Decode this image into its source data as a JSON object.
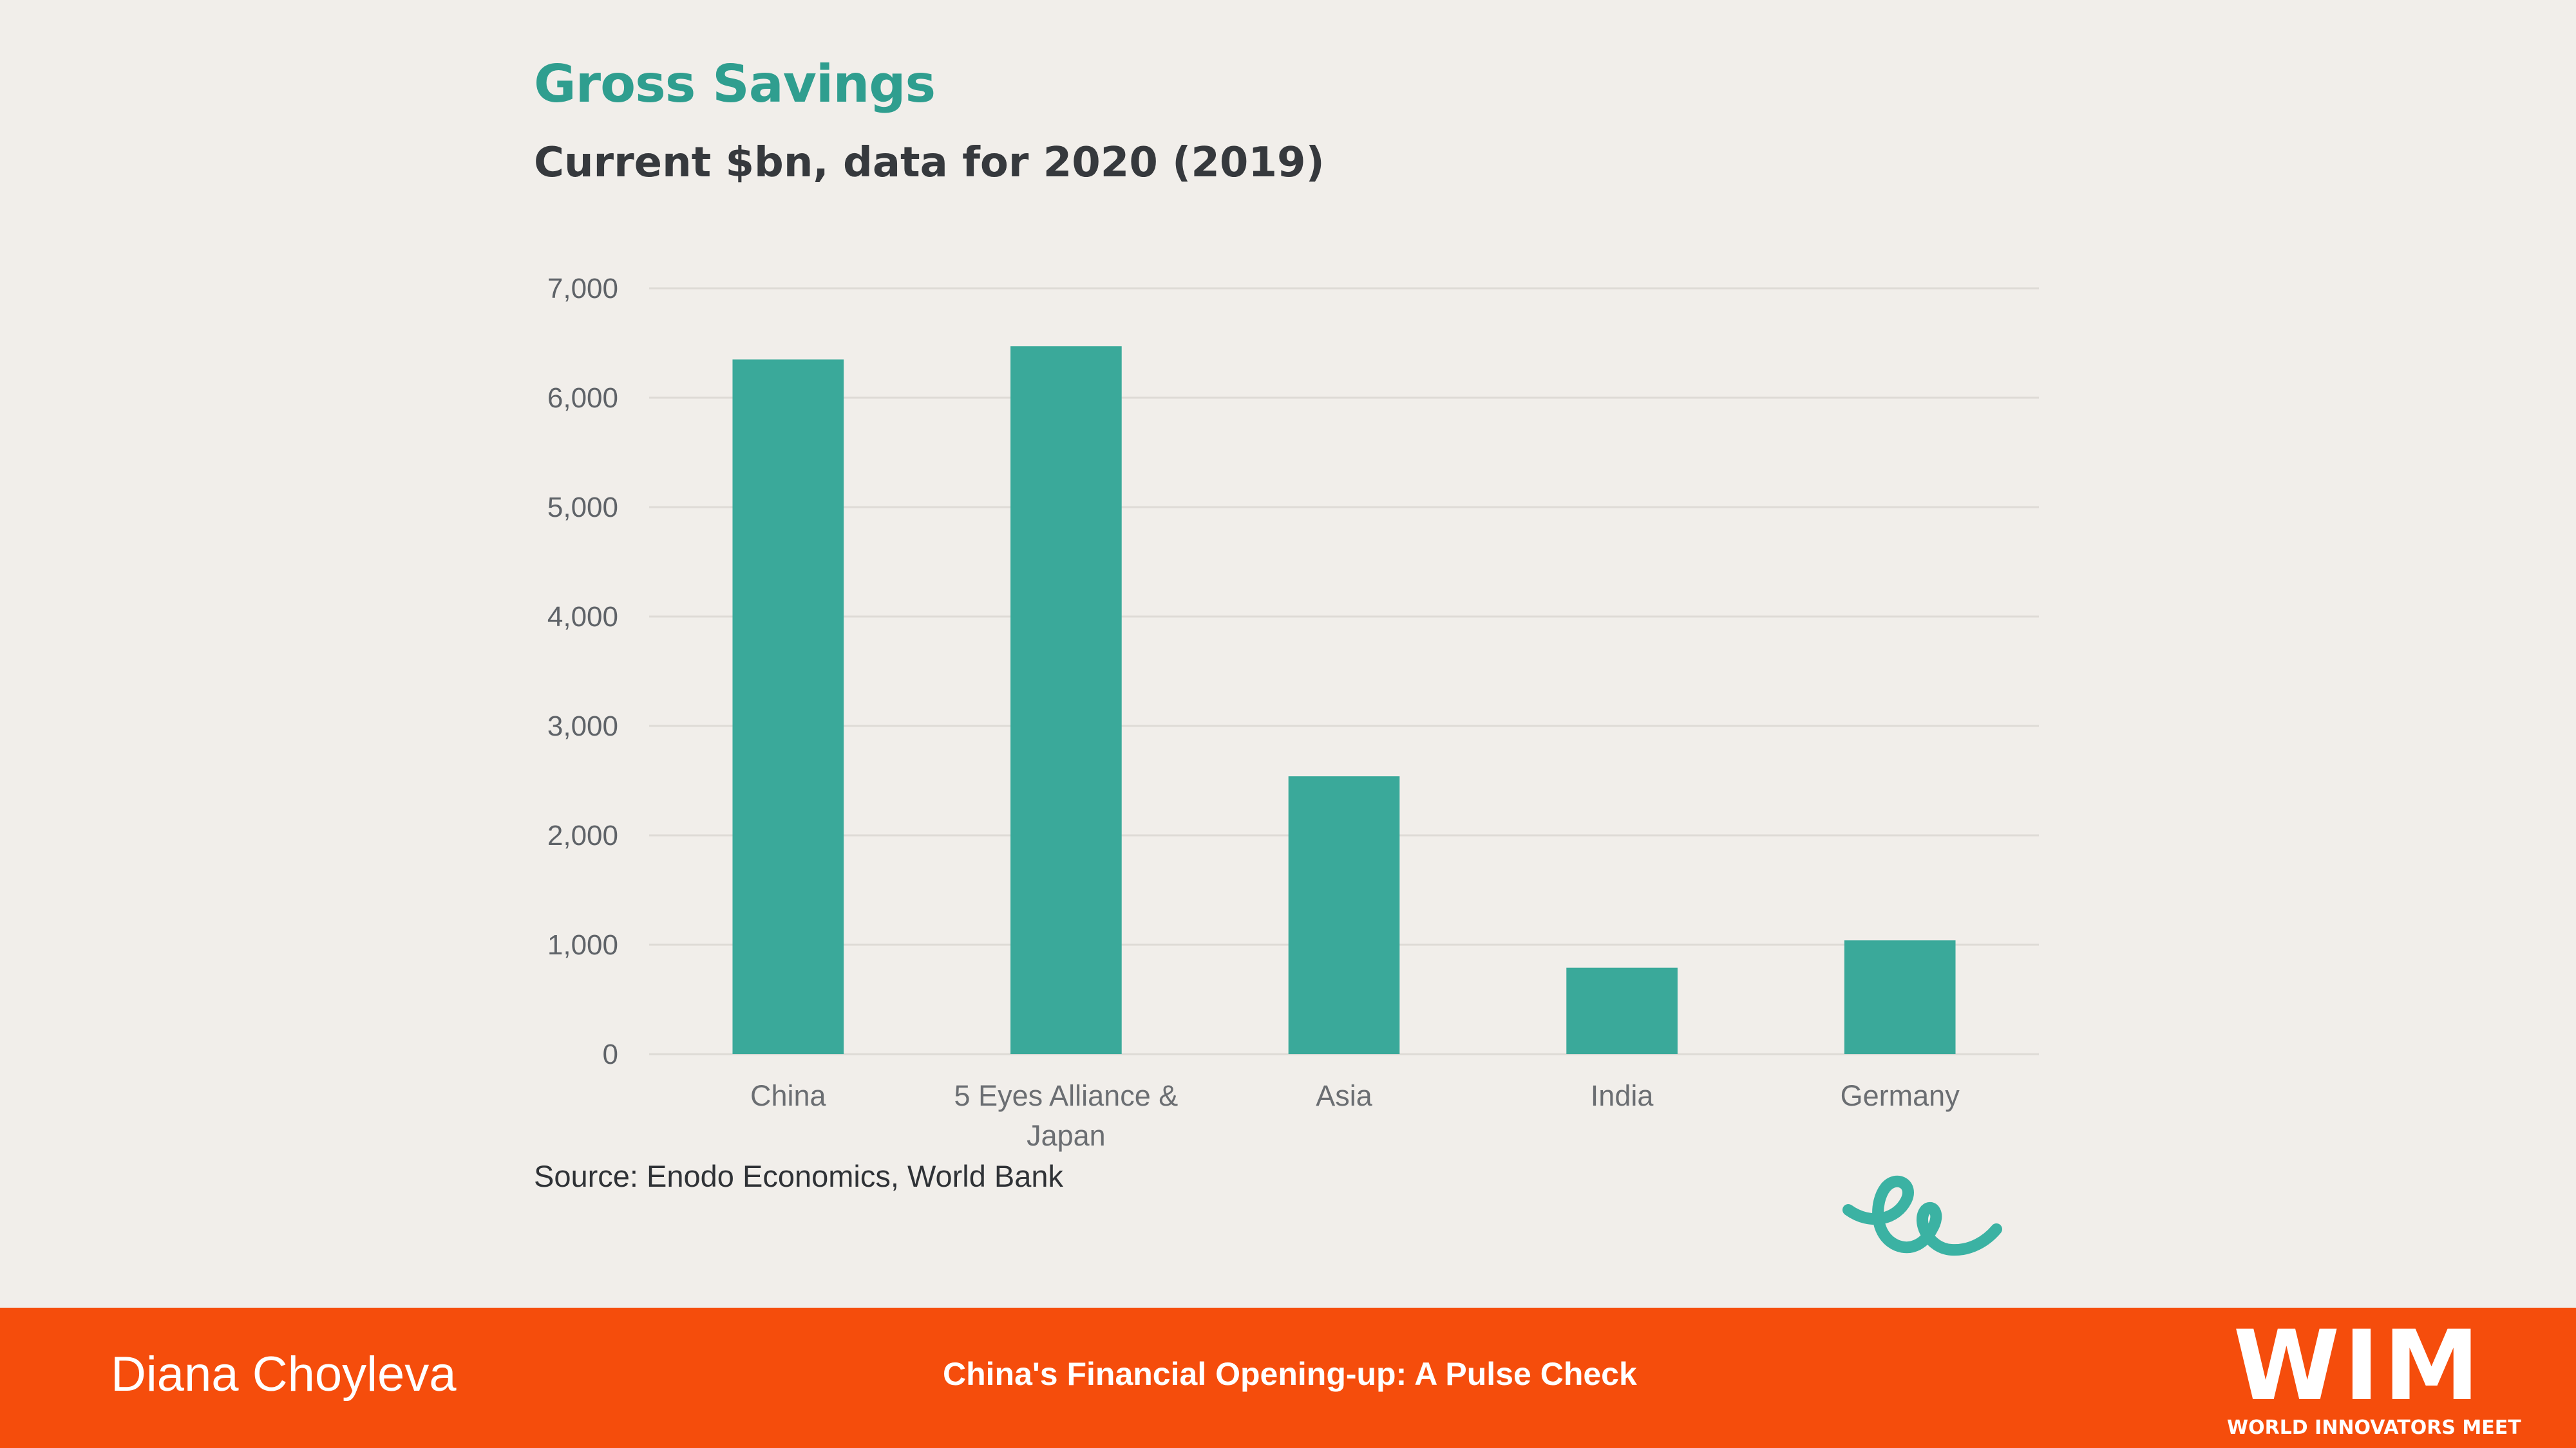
{
  "chart_data": {
    "type": "bar",
    "title": "Gross Savings",
    "subtitle": "Current $bn, data for 2020 (2019)",
    "categories": [
      "China",
      "5 Eyes Alliance & Japan",
      "Asia",
      "India",
      "Germany"
    ],
    "category_lines": [
      [
        "China"
      ],
      [
        "5 Eyes Alliance &",
        "Japan"
      ],
      [
        "Asia"
      ],
      [
        "India"
      ],
      [
        "Germany"
      ]
    ],
    "values": [
      6350,
      6470,
      2540,
      790,
      1040
    ],
    "ylim": [
      0,
      7000
    ],
    "yticks": [
      0,
      1000,
      2000,
      3000,
      4000,
      5000,
      6000,
      7000
    ],
    "ytick_labels": [
      "0",
      "1,000",
      "2,000",
      "3,000",
      "4,000",
      "5,000",
      "6,000",
      "7,000"
    ],
    "xlabel": "",
    "ylabel": "",
    "grid": true,
    "legend": "none",
    "colors": {
      "bar": "#3aa99a",
      "grid": "#dedbd6",
      "title": "#2f9e8f"
    }
  },
  "source": "Source: Enodo Economics, World Bank",
  "logo": {
    "icon": "enodo-ee-logo-icon",
    "color": "#3bb2a3"
  },
  "footer": {
    "author": "Diana Choyleva",
    "title": "China's Financial Opening-up: A Pulse Check",
    "brand_big": "WIM",
    "brand_small": "WORLD INNOVATORS MEET",
    "bg_color": "#f54d0c"
  }
}
